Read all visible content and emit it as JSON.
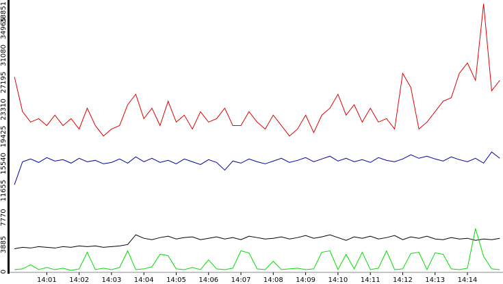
{
  "chart_data": {
    "type": "line",
    "x": [
      840,
      840.25,
      840.5,
      840.75,
      841,
      841.25,
      841.5,
      841.75,
      842,
      842.25,
      842.5,
      842.75,
      843,
      843.25,
      843.5,
      843.75,
      844,
      844.25,
      844.5,
      844.75,
      845,
      845.25,
      845.5,
      845.75,
      846,
      846.25,
      846.5,
      846.75,
      847,
      847.25,
      847.5,
      847.75,
      848,
      848.25,
      848.5,
      848.75,
      849,
      849.25,
      849.5,
      849.75,
      850,
      850.25,
      850.5,
      850.75,
      851,
      851.25,
      851.5,
      851.75,
      852,
      852.25,
      852.5,
      852.75,
      853,
      853.25,
      853.5,
      853.75,
      854,
      854.25,
      854.5,
      854.75,
      855
    ],
    "series": [
      {
        "name": "red",
        "color": "#e00000",
        "values": [
          28000,
          23000,
          21500,
          22000,
          21000,
          22500,
          21000,
          22000,
          20500,
          23500,
          21000,
          19500,
          20500,
          21000,
          24000,
          25500,
          22000,
          23500,
          21000,
          24500,
          21500,
          22500,
          20500,
          23000,
          21500,
          22000,
          23500,
          21000,
          21000,
          23000,
          21500,
          20500,
          22500,
          21000,
          19500,
          20500,
          22500,
          20000,
          22500,
          23500,
          25500,
          22500,
          24000,
          21500,
          23500,
          21500,
          22000,
          20500,
          28500,
          26500,
          20500,
          21500,
          23000,
          24500,
          25000,
          28500,
          30000,
          27500,
          38500,
          26000,
          27500
        ]
      },
      {
        "name": "blue",
        "color": "#0000a0",
        "values": [
          12500,
          15800,
          16200,
          15700,
          16400,
          15900,
          16100,
          15600,
          16300,
          15800,
          16000,
          15500,
          15700,
          16200,
          15600,
          16500,
          15800,
          16300,
          15700,
          16000,
          15500,
          16200,
          15800,
          15400,
          16100,
          15700,
          14600,
          15900,
          15600,
          16200,
          15800,
          15500,
          15900,
          16300,
          15700,
          16000,
          16400,
          15800,
          16200,
          16600,
          15900,
          16300,
          15800,
          16100,
          15700,
          16400,
          16000,
          15800,
          16200,
          16800,
          16300,
          16600,
          16200,
          15900,
          16500,
          16100,
          15800,
          16300,
          15600,
          17200,
          16300
        ]
      },
      {
        "name": "black",
        "color": "#000000",
        "values": [
          3300,
          3500,
          3400,
          3600,
          3500,
          3400,
          3600,
          3500,
          3700,
          3600,
          3700,
          3500,
          3600,
          3700,
          3900,
          5300,
          4800,
          4600,
          4900,
          5100,
          4700,
          4900,
          5000,
          4600,
          4800,
          5000,
          4700,
          4900,
          4600,
          5100,
          4900,
          4700,
          4800,
          5000,
          4700,
          4900,
          5200,
          4800,
          5000,
          5300,
          4900,
          4500,
          5000,
          4800,
          5100,
          4700,
          4900,
          5200,
          4600,
          5000,
          4800,
          5100,
          4700,
          4600,
          4900,
          4700,
          4800,
          4500,
          4700,
          4600,
          4800
        ]
      },
      {
        "name": "green",
        "color": "#00dd00",
        "values": [
          300,
          400,
          1000,
          300,
          600,
          300,
          500,
          200,
          400,
          2800,
          300,
          500,
          300,
          600,
          3000,
          300,
          400,
          700,
          2500,
          2300,
          400,
          300,
          600,
          300,
          1700,
          400,
          300,
          500,
          3000,
          2700,
          400,
          300,
          1500,
          300,
          400,
          500,
          300,
          400,
          2800,
          3000,
          300,
          2500,
          400,
          2800,
          300,
          500,
          3000,
          300,
          400,
          2600,
          2800,
          300,
          2700,
          2500,
          400,
          300,
          500,
          6200,
          2200,
          400,
          300
        ]
      }
    ],
    "xlim": [
      839.85,
      855.1
    ],
    "xticks": [
      {
        "value": 841,
        "label": "14:01"
      },
      {
        "value": 842,
        "label": "14:02"
      },
      {
        "value": 843,
        "label": "14:03"
      },
      {
        "value": 844,
        "label": "14:04"
      },
      {
        "value": 845,
        "label": "14:05"
      },
      {
        "value": 846,
        "label": "14:06"
      },
      {
        "value": 847,
        "label": "14:07"
      },
      {
        "value": 848,
        "label": "14:08"
      },
      {
        "value": 849,
        "label": "14:09"
      },
      {
        "value": 850,
        "label": "14:10"
      },
      {
        "value": 851,
        "label": "14:11"
      },
      {
        "value": 852,
        "label": "14:12"
      },
      {
        "value": 853,
        "label": "14:13"
      },
      {
        "value": 854,
        "label": "14:14"
      }
    ],
    "ylim": [
      0,
      38851
    ],
    "yticks": [
      0,
      3885,
      7770,
      11655,
      15540,
      19425,
      23310,
      27195,
      31080,
      34965,
      38851
    ]
  }
}
